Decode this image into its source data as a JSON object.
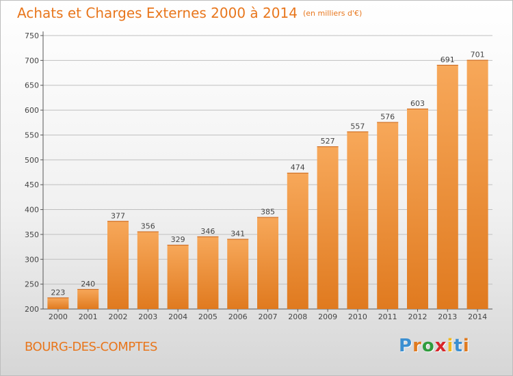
{
  "title": "Achats et Charges Externes 2000 à 2014",
  "subtitle": "(en milliers d'€)",
  "location": "BOURG-DES-COMPTES",
  "logo": {
    "letters": [
      "P",
      "r",
      "o",
      "x",
      "i",
      "t",
      "i"
    ],
    "colors": [
      "#3b8fd1",
      "#e07a1f",
      "#2f9c3d",
      "#d8262b",
      "#f2b81f",
      "#3b8fd1",
      "#e07a1f"
    ]
  },
  "colors": {
    "bar_light": "#f7a85a",
    "bar_dark": "#e07a1f",
    "grid": "#bfbfbf",
    "text": "#444444",
    "accent": "#e8761c"
  },
  "chart_data": {
    "type": "bar",
    "categories": [
      "2000",
      "2001",
      "2002",
      "2003",
      "2004",
      "2005",
      "2006",
      "2007",
      "2008",
      "2009",
      "2010",
      "2011",
      "2012",
      "2013",
      "2014"
    ],
    "values": [
      223,
      240,
      377,
      356,
      329,
      346,
      341,
      385,
      474,
      527,
      557,
      576,
      603,
      691,
      701
    ],
    "title": "Achats et Charges Externes 2000 à 2014",
    "subtitle": "(en milliers d'€)",
    "ylim": [
      200,
      750
    ],
    "yticks": [
      200,
      250,
      300,
      350,
      400,
      450,
      500,
      550,
      600,
      650,
      700,
      750
    ],
    "grid": true
  }
}
